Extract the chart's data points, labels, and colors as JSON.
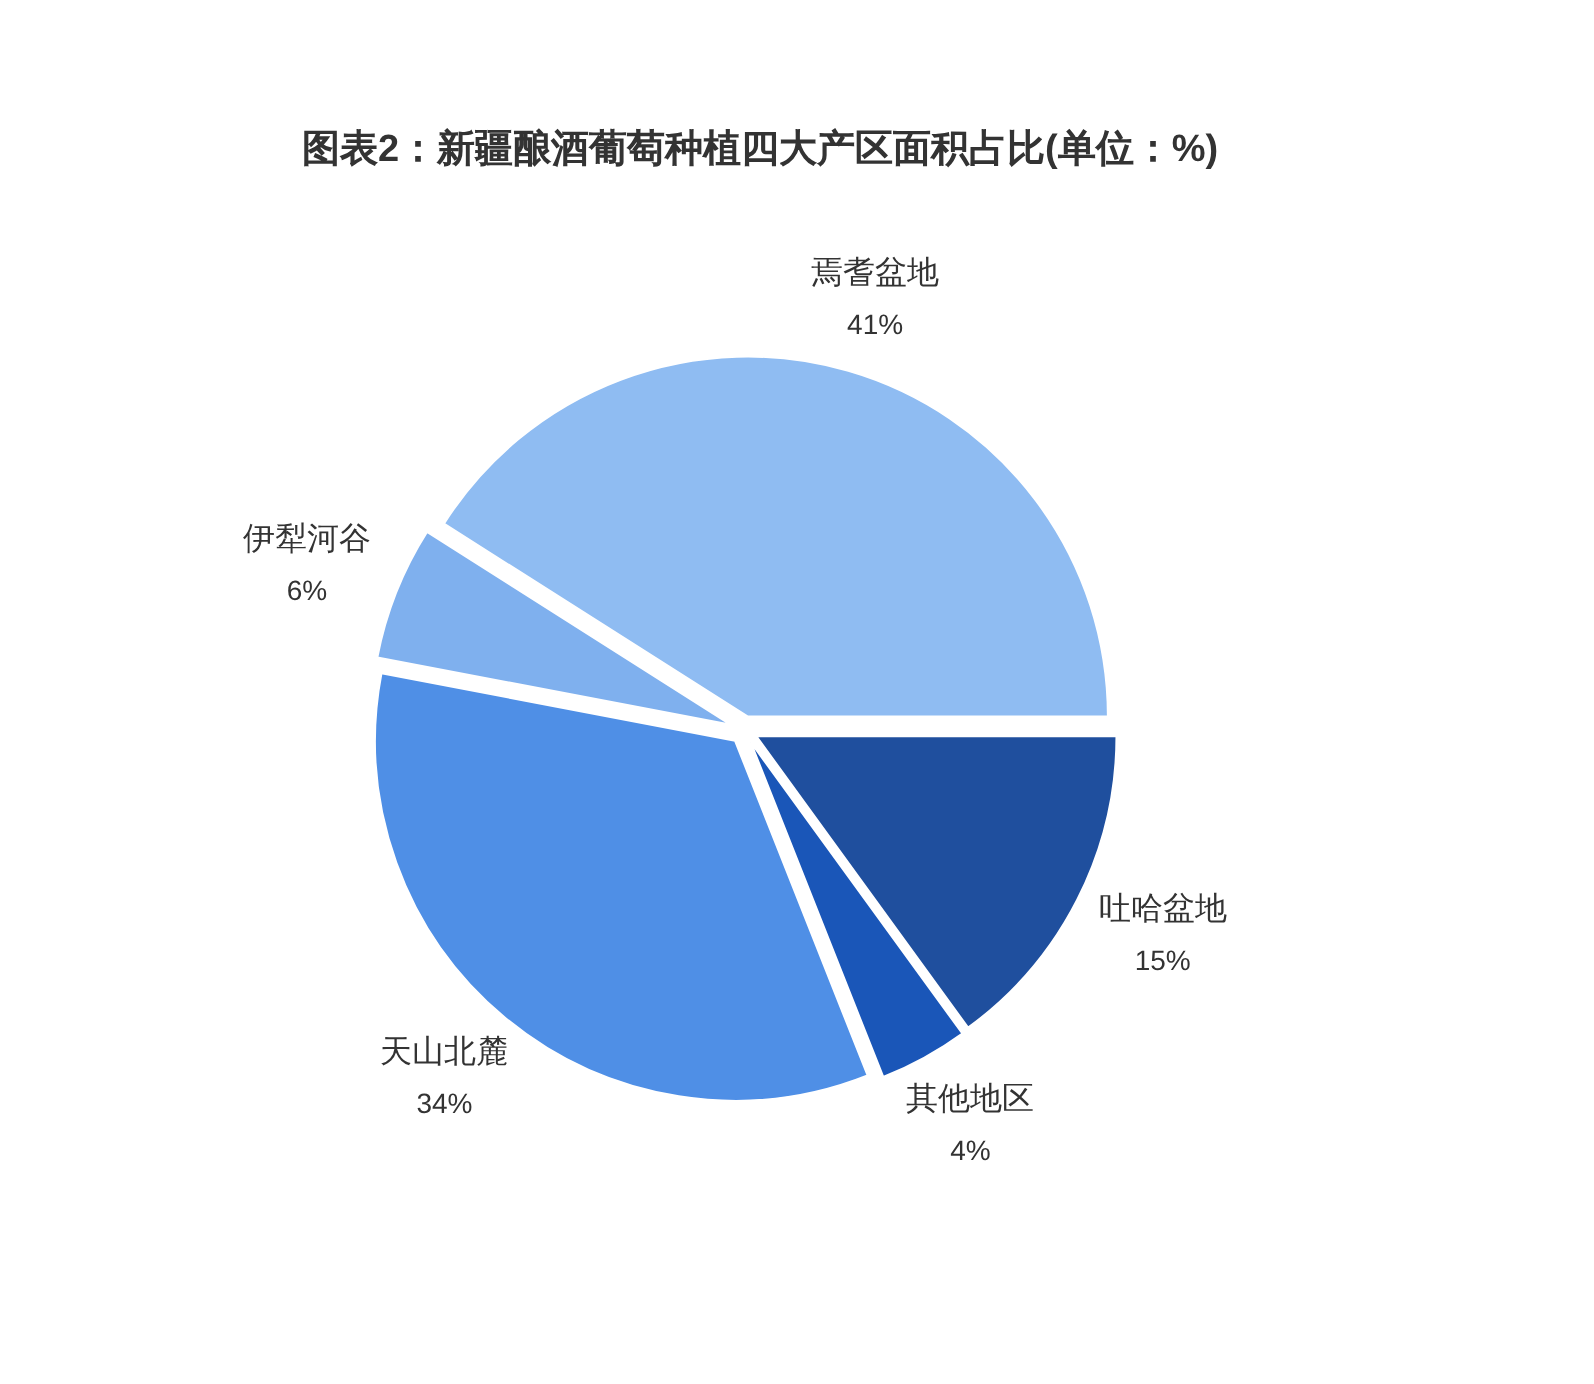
{
  "chart_data": {
    "type": "pie",
    "title": "图表2：新疆酿酒葡萄种植四大产区面积占比(单位：%)",
    "categories": [
      "焉耆盆地",
      "吐哈盆地",
      "其他地区",
      "天山北麓",
      "伊犁河谷"
    ],
    "values": [
      41,
      15,
      4,
      34,
      6
    ],
    "colors": [
      "#8fbcf2",
      "#1f4f9e",
      "#1a56b8",
      "#4f8fe6",
      "#7fb0ee"
    ],
    "value_labels": [
      "41%",
      "15%",
      "4%",
      "34%",
      "6%"
    ]
  }
}
